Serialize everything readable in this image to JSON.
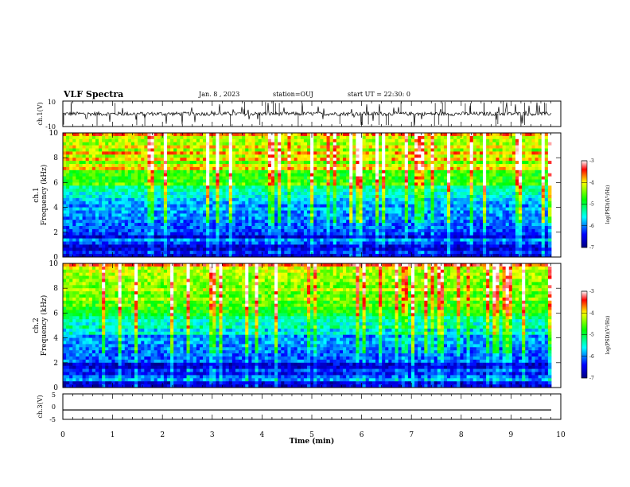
{
  "header": {
    "title": "VLF Spectra",
    "date": "Jan. 8 , 2023",
    "station": "station=OUJ",
    "start": "start UT = 22:30: 0"
  },
  "chart_data": [
    {
      "type": "line",
      "panel": "ch1-waveform",
      "ylabel": "ch.1(V)",
      "yticks": [
        "10",
        "-10"
      ],
      "ylim": [
        -10,
        10
      ],
      "xlim": [
        0,
        10
      ],
      "description_level": 0
    },
    {
      "type": "heatmap",
      "panel": "ch1-spectrogram",
      "ylabel_line1": "ch.1",
      "ylabel_line2": "Frequency (kHz)",
      "yticks": [
        "0",
        "2",
        "4",
        "6",
        "8",
        "10"
      ],
      "ylim": [
        0,
        10
      ],
      "xlim": [
        0,
        9.82
      ],
      "colorbar": {
        "label": "log(PSD)(V²/Hz)",
        "ticks": [
          "-3",
          "-4",
          "-5",
          "-6",
          "-7"
        ],
        "range": [
          -7,
          -3
        ]
      }
    },
    {
      "type": "heatmap",
      "panel": "ch2-spectrogram",
      "ylabel_line1": "ch.2",
      "ylabel_line2": "Frequency (kHz)",
      "yticks": [
        "0",
        "2",
        "4",
        "6",
        "8",
        "10"
      ],
      "ylim": [
        0,
        10
      ],
      "xlim": [
        0,
        9.82
      ],
      "colorbar": {
        "label": "log(PSD)(V²/Hz)",
        "ticks": [
          "-3",
          "-4",
          "-5",
          "-6",
          "-7"
        ],
        "range": [
          -7,
          -3
        ]
      }
    },
    {
      "type": "line",
      "panel": "ch3-waveform",
      "ylabel": "ch.3(V)",
      "yticks": [
        "5",
        "0",
        "-5"
      ],
      "ylim": [
        -5,
        5
      ],
      "xlim": [
        0,
        10
      ],
      "trace_level": -1.3
    }
  ],
  "xaxis": {
    "label": "Time (min)",
    "ticks": [
      "0",
      "1",
      "2",
      "3",
      "4",
      "5",
      "6",
      "7",
      "8",
      "9",
      "10"
    ],
    "range": [
      0,
      10
    ]
  },
  "colors": {
    "trace": "#000000",
    "axis": "#000000"
  }
}
